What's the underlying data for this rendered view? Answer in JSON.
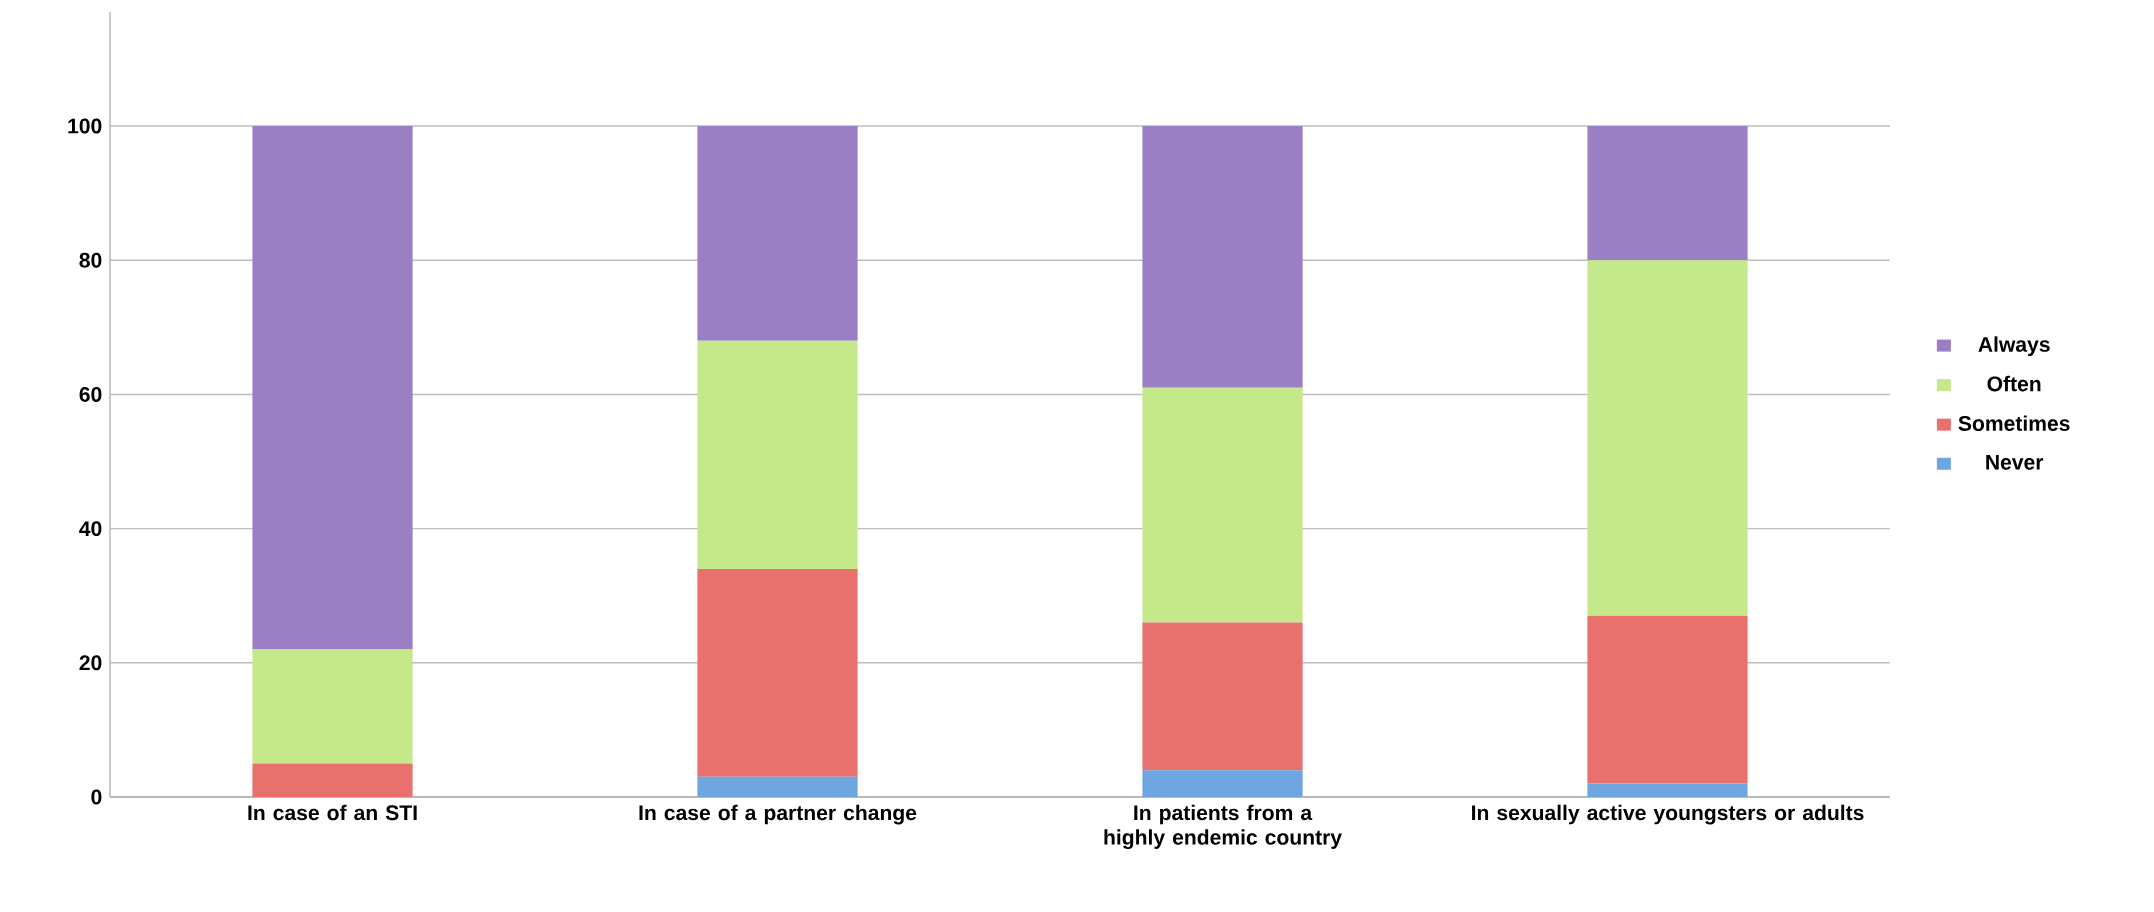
{
  "chart_data": {
    "type": "bar",
    "stacked": true,
    "categories": [
      "In case of an STI",
      "In case of a partner change",
      "In patients from a highly endemic country",
      "In sexually active youngsters or adults"
    ],
    "series": [
      {
        "name": "Never",
        "color": "#6fa6e0",
        "values": [
          0,
          3,
          4,
          2
        ]
      },
      {
        "name": "Sometimes",
        "color": "#e8716e",
        "values": [
          5,
          31,
          22,
          25
        ]
      },
      {
        "name": "Often",
        "color": "#c5e88a",
        "values": [
          17,
          34,
          35,
          53
        ]
      },
      {
        "name": "Always",
        "color": "#9b7fc4",
        "values": [
          78,
          32,
          39,
          20
        ]
      }
    ],
    "ylim": [
      0,
      117
    ],
    "yticks": [
      0,
      20,
      40,
      60,
      80,
      100
    ],
    "grid": "y",
    "legend": "right"
  }
}
